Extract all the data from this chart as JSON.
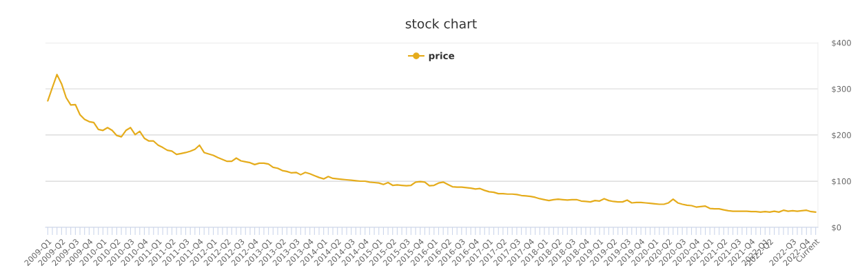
{
  "chart_data": {
    "type": "line",
    "title": "stock chart",
    "categories": [
      "2009-Q1",
      null,
      null,
      "2009-Q2",
      null,
      null,
      "2009-Q3",
      null,
      null,
      "2009-Q4",
      null,
      null,
      "2010-Q1",
      null,
      null,
      "2010-Q2",
      null,
      null,
      "2010-Q3",
      null,
      null,
      "2010-Q4",
      null,
      null,
      "2011-Q1",
      null,
      null,
      "2011-Q2",
      null,
      null,
      "2011-Q3",
      null,
      null,
      "2011-Q4",
      null,
      null,
      "2012-Q1",
      null,
      null,
      "2012-Q2",
      null,
      null,
      "2012-Q3",
      null,
      null,
      "2012-Q4",
      null,
      null,
      "2013-Q1",
      null,
      null,
      "2013-Q2",
      null,
      null,
      "2013-Q3",
      null,
      null,
      "2013-Q4",
      null,
      null,
      "2014-Q1",
      null,
      null,
      "2014-Q2",
      null,
      null,
      "2014-Q3",
      null,
      null,
      "2014-Q4",
      null,
      null,
      "2015-Q1",
      null,
      null,
      "2015-Q2",
      null,
      null,
      "2015-Q3",
      null,
      null,
      "2015-Q4",
      null,
      null,
      "2016-Q1",
      null,
      null,
      "2016-Q2",
      null,
      null,
      "2016-Q3",
      null,
      null,
      "2016-Q4",
      null,
      null,
      "2017-Q1",
      null,
      null,
      "2017-Q2",
      null,
      null,
      "2017-Q3",
      null,
      null,
      "2017-Q4",
      null,
      null,
      "2018-Q1",
      null,
      null,
      "2018-Q2",
      null,
      null,
      "2018-Q3",
      null,
      null,
      "2018-Q4",
      null,
      null,
      "2019-Q1",
      null,
      null,
      "2019-Q2",
      null,
      null,
      "2019-Q3",
      null,
      null,
      "2019-Q4",
      null,
      null,
      "2020-Q1",
      null,
      null,
      "2020-Q2",
      null,
      null,
      "2020-Q3",
      null,
      null,
      "2020-Q4",
      null,
      null,
      "2021-Q1",
      null,
      null,
      "2021-Q2",
      null,
      null,
      "2021-Q3",
      null,
      null,
      "2021-Q4",
      null,
      null,
      "2022-Q1",
      "2022-Q2",
      null,
      null,
      null,
      null,
      "2022-Q3",
      null,
      null,
      "2022-Q4",
      null,
      "Current"
    ],
    "series": [
      {
        "name": "price",
        "color": "#e5ac1c",
        "values": [
          274,
          303,
          331,
          311,
          281,
          265,
          266,
          244,
          234,
          229,
          227,
          212,
          210,
          216,
          210,
          199,
          196,
          210,
          216,
          201,
          208,
          193,
          187,
          187,
          178,
          173,
          167,
          165,
          158,
          160,
          162,
          165,
          169,
          178,
          162,
          159,
          156,
          151,
          147,
          143,
          143,
          150,
          144,
          142,
          140,
          136,
          139,
          139,
          137,
          130,
          128,
          123,
          121,
          118,
          119,
          114,
          119,
          116,
          112,
          108,
          105,
          110,
          106,
          105,
          104,
          103,
          102,
          101,
          100,
          100,
          98,
          97,
          96,
          93,
          97,
          91,
          92,
          91,
          90,
          91,
          98,
          99,
          98,
          90,
          91,
          96,
          98,
          93,
          88,
          87,
          87,
          86,
          85,
          83,
          84,
          80,
          77,
          76,
          73,
          73,
          72,
          72,
          71,
          69,
          68,
          67,
          65,
          62,
          60,
          58,
          60,
          61,
          60,
          59,
          60,
          60,
          57,
          56,
          55,
          58,
          57,
          62,
          58,
          56,
          55,
          55,
          59,
          53,
          54,
          54,
          53,
          52,
          51,
          50,
          50,
          53,
          61,
          53,
          50,
          48,
          47,
          44,
          45,
          46,
          41,
          40,
          40,
          38,
          36,
          35,
          35,
          35,
          35,
          34,
          34,
          33,
          34,
          33,
          35,
          33,
          37,
          35,
          36,
          35,
          36,
          37,
          34,
          33
        ]
      }
    ],
    "ylim": [
      0,
      400
    ],
    "yticks": [
      {
        "value": 0,
        "label": "$0"
      },
      {
        "value": 100,
        "label": "$100"
      },
      {
        "value": 200,
        "label": "$200"
      },
      {
        "value": 300,
        "label": "$300"
      },
      {
        "value": 400,
        "label": "$400"
      }
    ],
    "grid": "y",
    "legend": "top"
  }
}
